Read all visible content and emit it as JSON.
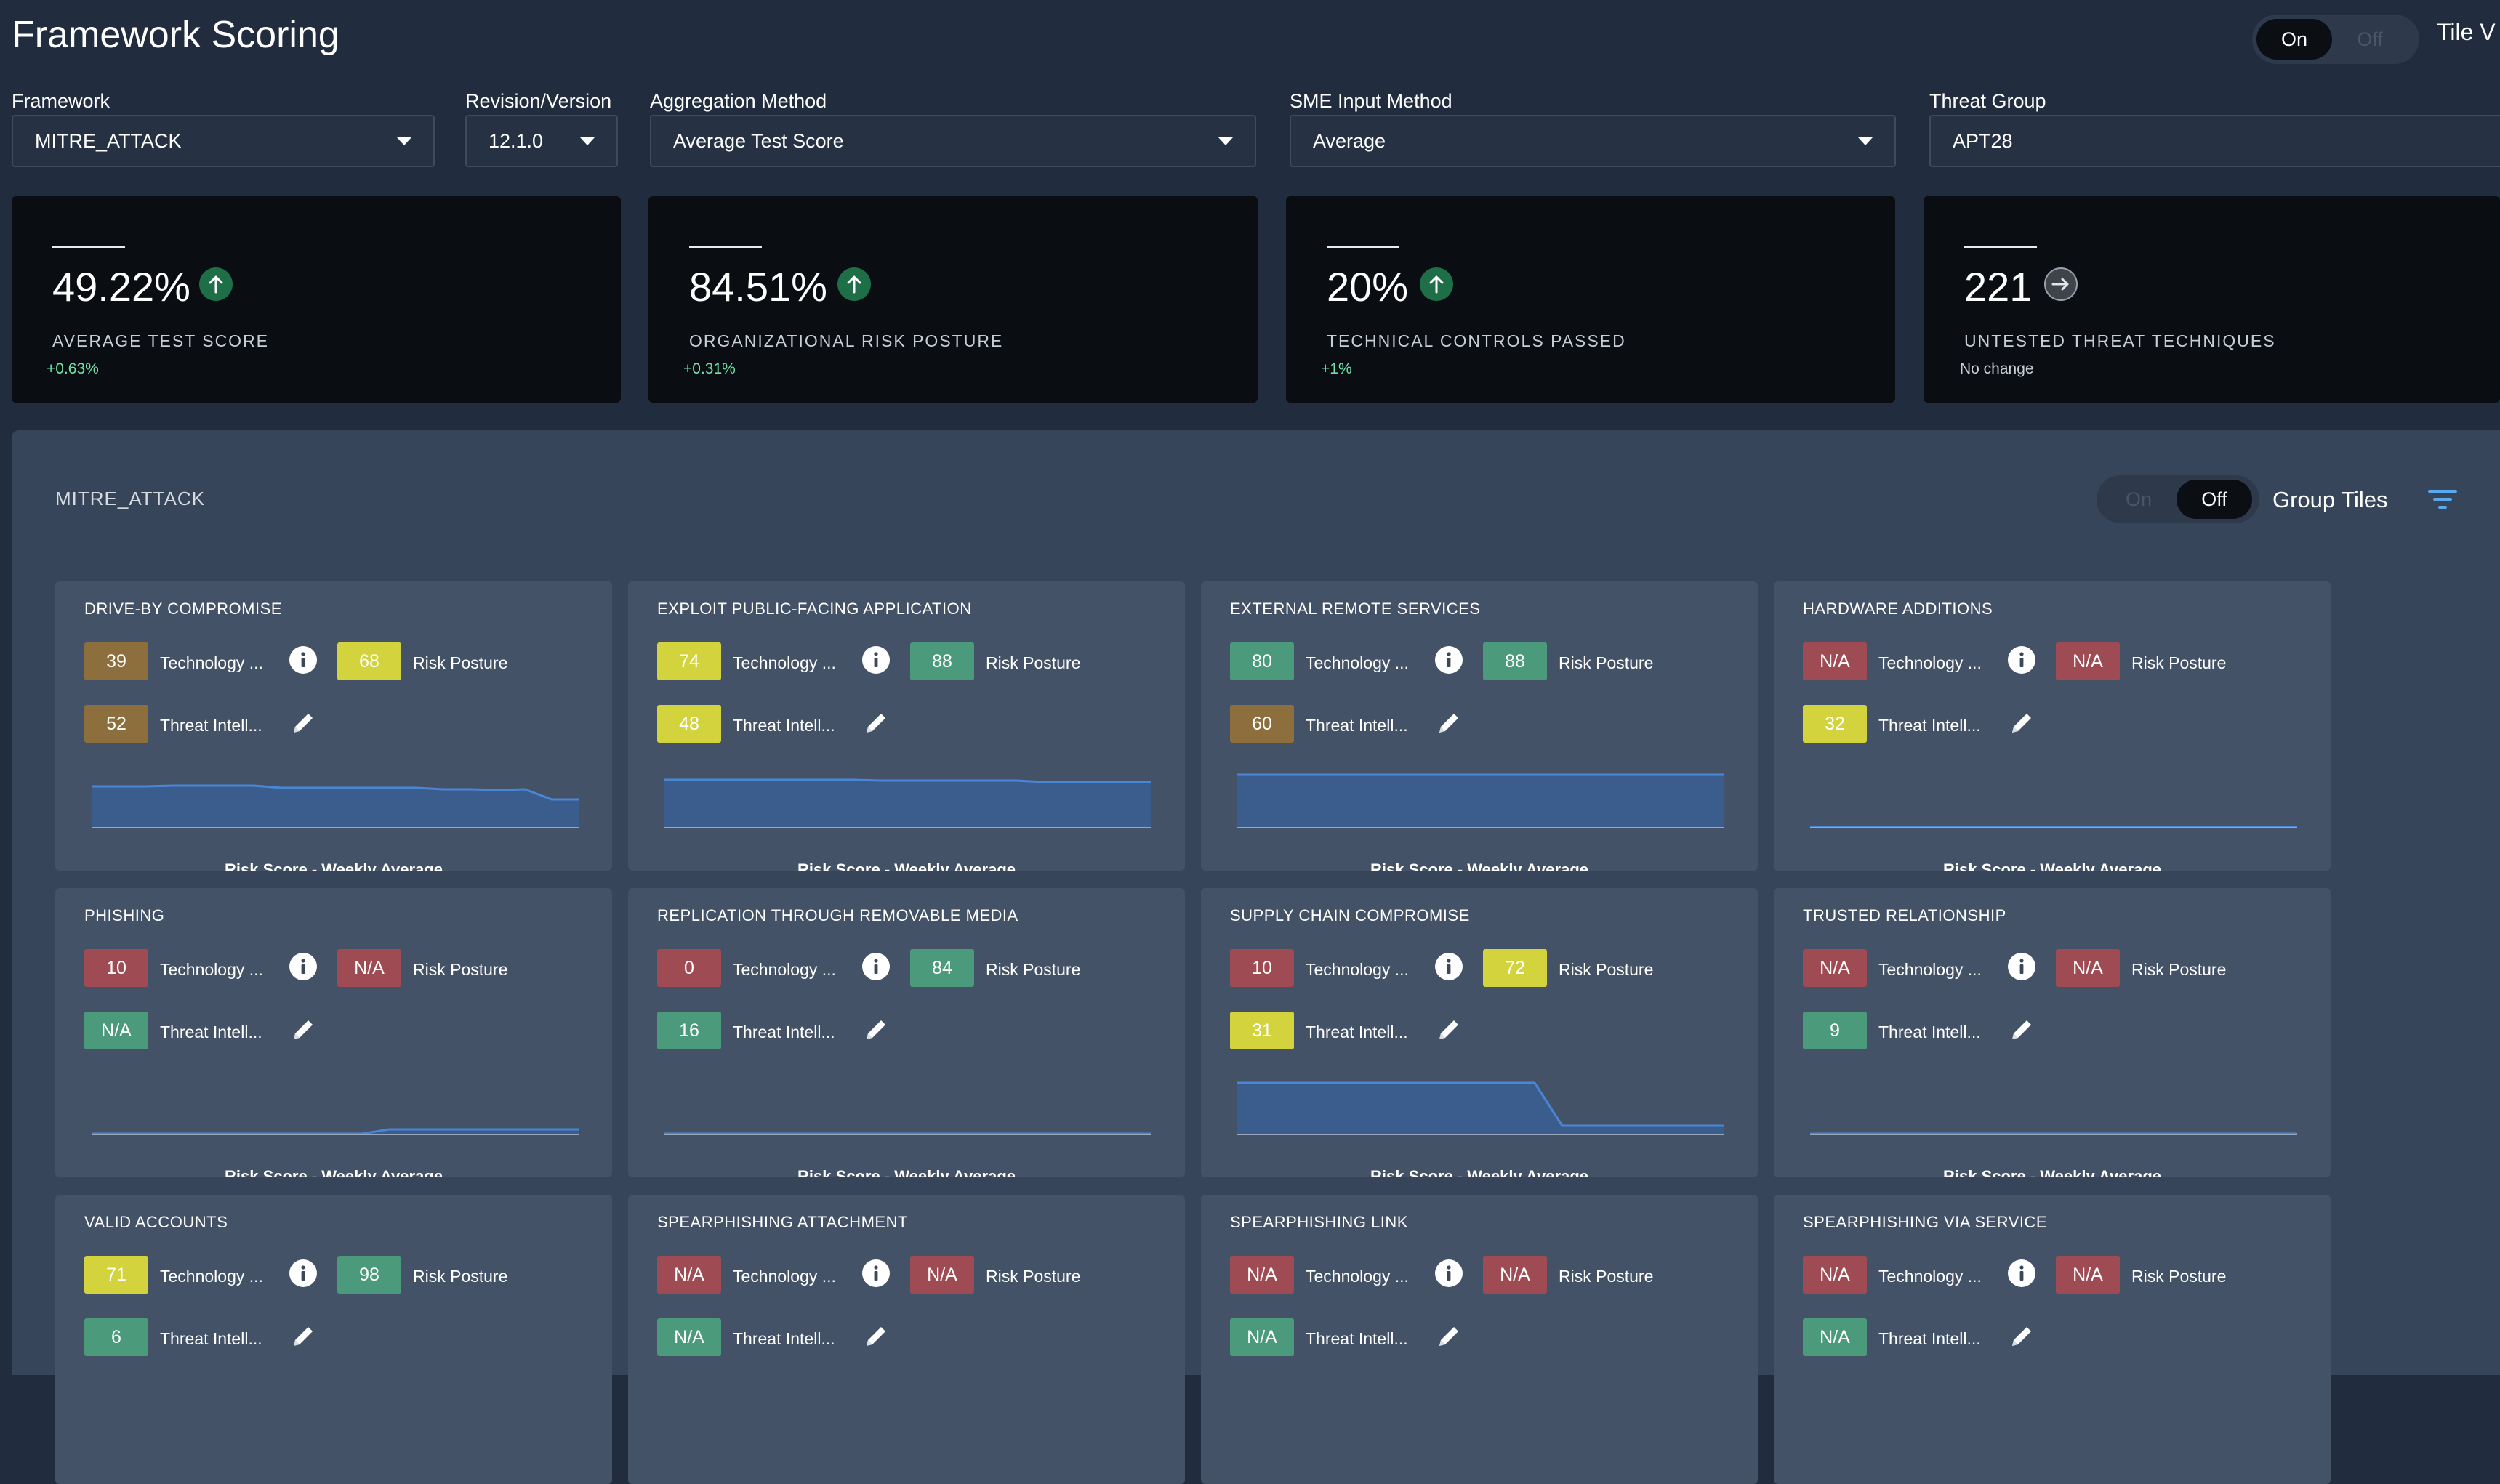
{
  "header": {
    "title": "Framework Scoring",
    "tile_view_toggle": {
      "on": "On",
      "off": "Off",
      "active": "on"
    },
    "tile_view_label": "Tile V"
  },
  "filters": {
    "framework": {
      "label": "Framework",
      "value": "MITRE_ATTACK"
    },
    "revision": {
      "label": "Revision/Version",
      "value": "12.1.0"
    },
    "aggregation": {
      "label": "Aggregation Method",
      "value": "Average Test Score"
    },
    "sme": {
      "label": "SME Input Method",
      "value": "Average"
    },
    "threat_group": {
      "label": "Threat Group",
      "value": "APT28"
    }
  },
  "kpis": [
    {
      "value": "49.22%",
      "label": "AVERAGE TEST SCORE",
      "delta": "+0.63%",
      "trend": "up"
    },
    {
      "value": "84.51%",
      "label": "ORGANIZATIONAL RISK POSTURE",
      "delta": "+0.31%",
      "trend": "up"
    },
    {
      "value": "20%",
      "label": "TECHNICAL CONTROLS PASSED",
      "delta": "+1%",
      "trend": "up"
    },
    {
      "value": "221",
      "label": "UNTESTED THREAT TECHNIQUES",
      "delta": "No change",
      "trend": "flat"
    }
  ],
  "panel": {
    "title": "MITRE_ATTACK",
    "group_tiles_toggle": {
      "on": "On",
      "off": "Off",
      "active": "off"
    },
    "group_tiles_label": "Group Tiles"
  },
  "tile_labels": {
    "technology": "Technology ...",
    "risk_posture": "Risk Posture",
    "threat_intel": "Threat Intell...",
    "chart_caption": "Risk Score - Weekly Average"
  },
  "colors": {
    "olive": "#8d6e3d",
    "yellow": "#d3d33d",
    "green": "#4b9a7b",
    "red": "#9e4b54",
    "trend_up": "#1e6e47",
    "spark_line": "#4a86d8"
  },
  "tiles": [
    {
      "title": "DRIVE-BY COMPROMISE",
      "tech": {
        "v": "39",
        "c": "olive"
      },
      "risk": {
        "v": "68",
        "c": "yellow"
      },
      "intel": {
        "v": "52",
        "c": "olive"
      },
      "spark": [
        0.72,
        0.72,
        0.72,
        0.74,
        0.74,
        0.74,
        0.74,
        0.7,
        0.7,
        0.7,
        0.7,
        0.7,
        0.7,
        0.68,
        0.68,
        0.66,
        0.68,
        0.5,
        0.5
      ]
    },
    {
      "title": "EXPLOIT PUBLIC-FACING APPLICATION",
      "tech": {
        "v": "74",
        "c": "yellow"
      },
      "risk": {
        "v": "88",
        "c": "green"
      },
      "intel": {
        "v": "48",
        "c": "yellow"
      },
      "spark": [
        0.84,
        0.84,
        0.84,
        0.84,
        0.84,
        0.84,
        0.84,
        0.84,
        0.82,
        0.82,
        0.82,
        0.82,
        0.82,
        0.82,
        0.8,
        0.8,
        0.8,
        0.8,
        0.8
      ]
    },
    {
      "title": "EXTERNAL REMOTE SERVICES",
      "tech": {
        "v": "80",
        "c": "green"
      },
      "risk": {
        "v": "88",
        "c": "green"
      },
      "intel": {
        "v": "60",
        "c": "olive"
      },
      "spark": [
        0.92,
        0.92,
        0.92,
        0.92,
        0.92,
        0.92,
        0.92,
        0.92,
        0.92,
        0.92,
        0.92,
        0.92,
        0.92,
        0.92,
        0.92,
        0.92,
        0.92,
        0.92,
        0.92
      ]
    },
    {
      "title": "HARDWARE ADDITIONS",
      "tech": {
        "v": "N/A",
        "c": "red"
      },
      "risk": {
        "v": "N/A",
        "c": "red"
      },
      "intel": {
        "v": "32",
        "c": "yellow"
      },
      "spark": [
        0.03,
        0.03,
        0.03,
        0.03,
        0.03,
        0.03,
        0.03,
        0.03,
        0.03,
        0.03,
        0.03,
        0.03,
        0.03,
        0.03,
        0.03,
        0.03,
        0.03,
        0.03,
        0.03
      ]
    },
    {
      "title": "PHISHING",
      "tech": {
        "v": "10",
        "c": "red"
      },
      "risk": {
        "v": "N/A",
        "c": "red"
      },
      "intel": {
        "v": "N/A",
        "c": "green"
      },
      "spark": [
        0.03,
        0.03,
        0.03,
        0.03,
        0.03,
        0.03,
        0.03,
        0.03,
        0.03,
        0.03,
        0.03,
        0.1,
        0.1,
        0.1,
        0.1,
        0.1,
        0.1,
        0.1,
        0.1
      ]
    },
    {
      "title": "REPLICATION THROUGH REMOVABLE MEDIA",
      "tech": {
        "v": "0",
        "c": "red"
      },
      "risk": {
        "v": "84",
        "c": "green"
      },
      "intel": {
        "v": "16",
        "c": "green"
      },
      "spark": [
        0.02,
        0.02,
        0.02,
        0.02,
        0.02,
        0.02,
        0.02,
        0.02,
        0.02,
        0.02,
        0.02,
        0.02,
        0.02,
        0.02,
        0.02,
        0.02,
        0.02,
        0.02,
        0.02
      ]
    },
    {
      "title": "SUPPLY CHAIN COMPROMISE",
      "tech": {
        "v": "10",
        "c": "red"
      },
      "risk": {
        "v": "72",
        "c": "yellow"
      },
      "intel": {
        "v": "31",
        "c": "yellow"
      },
      "spark": [
        0.9,
        0.9,
        0.9,
        0.9,
        0.9,
        0.9,
        0.9,
        0.9,
        0.9,
        0.9,
        0.9,
        0.9,
        0.16,
        0.16,
        0.16,
        0.16,
        0.16,
        0.16,
        0.16
      ]
    },
    {
      "title": "TRUSTED RELATIONSHIP",
      "tech": {
        "v": "N/A",
        "c": "red"
      },
      "risk": {
        "v": "N/A",
        "c": "red"
      },
      "intel": {
        "v": "9",
        "c": "green"
      },
      "spark": [
        0.03,
        0.03,
        0.03,
        0.03,
        0.03,
        0.03,
        0.03,
        0.03,
        0.03,
        0.03,
        0.03,
        0.03,
        0.03,
        0.03,
        0.03,
        0.03,
        0.03,
        0.03,
        0.03
      ]
    },
    {
      "title": "VALID ACCOUNTS",
      "tech": {
        "v": "71",
        "c": "yellow"
      },
      "risk": {
        "v": "98",
        "c": "green"
      },
      "intel": {
        "v": "6",
        "c": "green"
      },
      "spark": []
    },
    {
      "title": "SPEARPHISHING ATTACHMENT",
      "tech": {
        "v": "N/A",
        "c": "red"
      },
      "risk": {
        "v": "N/A",
        "c": "red"
      },
      "intel": {
        "v": "N/A",
        "c": "green"
      },
      "spark": []
    },
    {
      "title": "SPEARPHISHING LINK",
      "tech": {
        "v": "N/A",
        "c": "red"
      },
      "risk": {
        "v": "N/A",
        "c": "red"
      },
      "intel": {
        "v": "N/A",
        "c": "green"
      },
      "spark": []
    },
    {
      "title": "SPEARPHISHING VIA SERVICE",
      "tech": {
        "v": "N/A",
        "c": "red"
      },
      "risk": {
        "v": "N/A",
        "c": "red"
      },
      "intel": {
        "v": "N/A",
        "c": "green"
      },
      "spark": []
    }
  ]
}
